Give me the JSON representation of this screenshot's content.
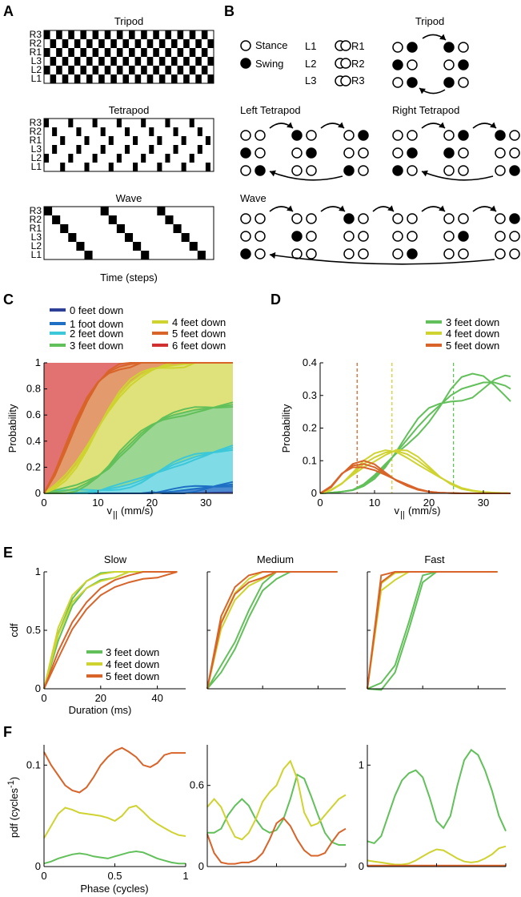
{
  "colors": {
    "f0": "#2e3f98",
    "f1": "#1f6fc4",
    "f2": "#3cc8d8",
    "f3": "#62c05a",
    "f4": "#cfd330",
    "f5": "#d8642a",
    "f6": "#d03030"
  },
  "panelA": {
    "label": "A",
    "tripod": {
      "title": "Tripod"
    },
    "tetrapod": {
      "title": "Tetrapod"
    },
    "wave": {
      "title": "Wave"
    },
    "rows": [
      "R3",
      "R2",
      "R1",
      "L3",
      "L2",
      "L1"
    ],
    "xlabel": "Time (steps)"
  },
  "panelB": {
    "label": "B",
    "legend": {
      "stance": "Stance",
      "swing": "Swing"
    },
    "legs": {
      "l1": "L1",
      "r1": "R1",
      "l2": "L2",
      "r2": "R2",
      "l3": "L3",
      "r3": "R3"
    },
    "tripod": "Tripod",
    "left_tetrapod": "Left Tetrapod",
    "right_tetrapod": "Right Tetrapod",
    "wave": "Wave"
  },
  "panelC": {
    "label": "C",
    "legend": [
      "0 feet down",
      "1 foot down",
      "2 feet down",
      "3 feet down",
      "4 feet down",
      "5 feet down",
      "6 feet down"
    ],
    "ylabel": "Probability",
    "xlabel_main": "v",
    "xlabel_sub": "||",
    "xlabel_unit": " (mm/s)",
    "xticks": [
      "0",
      "10",
      "20",
      "30"
    ],
    "yticks": [
      "0",
      "0.2",
      "0.4",
      "0.6",
      "0.8",
      "1"
    ]
  },
  "panelD": {
    "label": "D",
    "legend": [
      "3 feet down",
      "4 feet down",
      "5 feet down"
    ],
    "ylabel": "Probability",
    "xticks": [
      "0",
      "10",
      "20",
      "30"
    ],
    "yticks": [
      "0",
      "0.1",
      "0.2",
      "0.3",
      "0.4"
    ]
  },
  "panelE": {
    "label": "E",
    "titles": [
      "Slow",
      "Medium",
      "Fast"
    ],
    "ylabel": "cdf",
    "xlabel": "Duration (ms)",
    "xticks": [
      "0",
      "20",
      "40"
    ],
    "yticks": [
      "0",
      "0.5",
      "1"
    ],
    "legend": [
      "3 feet down",
      "4 feet down",
      "5 feet down"
    ]
  },
  "panelF": {
    "label": "F",
    "ylabel_main": "pdf (cycles",
    "ylabel_sup": "-1",
    "ylabel_end": ")",
    "xlabel": "Phase (cycles)",
    "xticks": [
      "0",
      "0.5",
      "1"
    ],
    "yticks": [
      [
        "0",
        "0.1"
      ],
      [
        "0",
        "0.6"
      ],
      [
        "0",
        "1"
      ]
    ]
  },
  "chart_data": [
    {
      "type": "area",
      "title": "",
      "xlabel": "v|| (mm/s)",
      "ylabel": "Probability",
      "xlim": [
        0,
        35
      ],
      "ylim": [
        0,
        1
      ],
      "x": [
        0,
        2,
        4,
        6,
        8,
        10,
        12,
        14,
        16,
        18,
        20,
        22,
        24,
        26,
        28,
        30,
        32,
        35
      ],
      "series": [
        {
          "name": "0 feet down",
          "cumulative_upper": [
            0,
            0,
            0,
            0,
            0,
            0,
            0,
            0,
            0,
            0,
            0,
            0,
            0.002,
            0.005,
            0.008,
            0.01,
            0.012,
            0.015
          ]
        },
        {
          "name": "1 foot down",
          "cumulative_upper": [
            0,
            0,
            0,
            0,
            0,
            0,
            0,
            0,
            0,
            0,
            0.003,
            0.008,
            0.015,
            0.025,
            0.035,
            0.045,
            0.055,
            0.07
          ]
        },
        {
          "name": "2 feet down",
          "cumulative_upper": [
            0,
            0.001,
            0.002,
            0.005,
            0.01,
            0.02,
            0.035,
            0.05,
            0.07,
            0.1,
            0.14,
            0.18,
            0.22,
            0.25,
            0.28,
            0.3,
            0.32,
            0.35
          ]
        },
        {
          "name": "3 feet down",
          "cumulative_upper": [
            0,
            0.01,
            0.02,
            0.04,
            0.08,
            0.13,
            0.2,
            0.3,
            0.38,
            0.46,
            0.52,
            0.57,
            0.6,
            0.62,
            0.64,
            0.65,
            0.66,
            0.68
          ]
        },
        {
          "name": "4 feet down",
          "cumulative_upper": [
            0,
            0.05,
            0.12,
            0.22,
            0.35,
            0.5,
            0.64,
            0.76,
            0.85,
            0.91,
            0.95,
            0.97,
            0.98,
            0.99,
            1,
            1,
            1,
            1
          ]
        },
        {
          "name": "5 feet down",
          "cumulative_upper": [
            0,
            0.15,
            0.35,
            0.55,
            0.72,
            0.85,
            0.93,
            0.97,
            0.99,
            1,
            1,
            1,
            1,
            1,
            1,
            1,
            1,
            1
          ]
        },
        {
          "name": "6 feet down",
          "cumulative_upper": [
            1,
            1,
            1,
            1,
            1,
            1,
            1,
            1,
            1,
            1,
            1,
            1,
            1,
            1,
            1,
            1,
            1,
            1
          ]
        }
      ]
    },
    {
      "type": "line",
      "xlabel": "v|| (mm/s)",
      "ylabel": "Probability",
      "xlim": [
        0,
        35
      ],
      "ylim": [
        0,
        0.4
      ],
      "x": [
        0,
        2,
        4,
        6,
        8,
        10,
        12,
        14,
        16,
        18,
        20,
        22,
        24,
        26,
        28,
        30,
        32,
        34,
        35
      ],
      "series": [
        {
          "name": "3 feet down",
          "values": [
            0,
            0.002,
            0.005,
            0.01,
            0.025,
            0.05,
            0.085,
            0.125,
            0.165,
            0.205,
            0.24,
            0.27,
            0.3,
            0.32,
            0.33,
            0.34,
            0.34,
            0.33,
            0.32
          ]
        },
        {
          "name": "4 feet down",
          "values": [
            0,
            0.01,
            0.03,
            0.06,
            0.09,
            0.11,
            0.125,
            0.13,
            0.12,
            0.1,
            0.075,
            0.05,
            0.03,
            0.015,
            0.008,
            0.004,
            0.002,
            0.001,
            0
          ]
        },
        {
          "name": "5 feet down",
          "values": [
            0,
            0.02,
            0.06,
            0.085,
            0.09,
            0.08,
            0.06,
            0.04,
            0.025,
            0.012,
            0.005,
            0.002,
            0.001,
            0,
            0,
            0,
            0,
            0,
            0
          ]
        }
      ],
      "mean_lines": {
        "3 feet down": 24.5,
        "4 feet down": 13.2,
        "5 feet down": 6.8
      }
    },
    [
      {
        "type": "line",
        "title": "Slow",
        "xlabel": "Duration (ms)",
        "ylabel": "cdf",
        "xlim": [
          0,
          50
        ],
        "ylim": [
          0,
          1
        ],
        "x": [
          0,
          5,
          10,
          15,
          20,
          25,
          30,
          35,
          40,
          47
        ],
        "series": [
          {
            "name": "3 feet down",
            "values": [
              0,
              0.45,
              0.75,
              0.9,
              0.97,
              0.99,
              1,
              1,
              1,
              1
            ]
          },
          {
            "name": "4 feet down",
            "values": [
              0,
              0.5,
              0.78,
              0.9,
              0.96,
              0.99,
              1,
              1,
              1,
              1
            ]
          },
          {
            "name": "5 feet down",
            "values": [
              0,
              0.3,
              0.55,
              0.72,
              0.84,
              0.91,
              0.95,
              0.98,
              0.99,
              1
            ]
          }
        ]
      },
      {
        "type": "line",
        "title": "Medium",
        "xlim": [
          0,
          50
        ],
        "ylim": [
          0,
          1
        ],
        "x": [
          0,
          5,
          10,
          15,
          20,
          25,
          30,
          35,
          40,
          47
        ],
        "series": [
          {
            "name": "3 feet down",
            "values": [
              0,
              0.18,
              0.38,
              0.65,
              0.88,
              0.98,
              1,
              1,
              1,
              1
            ]
          },
          {
            "name": "4 feet down",
            "values": [
              0,
              0.55,
              0.8,
              0.92,
              0.98,
              1,
              1,
              1,
              1,
              1
            ]
          },
          {
            "name": "5 feet down",
            "values": [
              0,
              0.6,
              0.85,
              0.95,
              0.99,
              1,
              1,
              1,
              1,
              1
            ]
          }
        ]
      },
      {
        "type": "line",
        "title": "Fast",
        "xlim": [
          0,
          50
        ],
        "ylim": [
          0,
          1
        ],
        "x": [
          0,
          5,
          10,
          15,
          20,
          25,
          30,
          35,
          40,
          47
        ],
        "series": [
          {
            "name": "3 feet down",
            "values": [
              0,
              0.03,
              0.18,
              0.55,
              0.95,
              1,
              1,
              1,
              1,
              1
            ]
          },
          {
            "name": "4 feet down",
            "values": [
              0,
              0.88,
              0.97,
              1,
              1,
              1,
              1,
              1,
              1,
              1
            ]
          },
          {
            "name": "5 feet down",
            "values": [
              0,
              0.95,
              1,
              1,
              1,
              1,
              1,
              1,
              1,
              1
            ]
          }
        ]
      }
    ],
    [
      {
        "type": "line",
        "xlabel": "Phase (cycles)",
        "ylabel": "pdf (cycles^-1)",
        "xlim": [
          0,
          1
        ],
        "ylim": [
          0,
          0.12
        ],
        "x": [
          0,
          0.05,
          0.1,
          0.15,
          0.2,
          0.25,
          0.3,
          0.35,
          0.4,
          0.45,
          0.5,
          0.55,
          0.6,
          0.65,
          0.7,
          0.75,
          0.8,
          0.85,
          0.9,
          0.95,
          1
        ],
        "series": [
          {
            "name": "3 feet down",
            "values": [
              0.003,
              0.005,
              0.008,
              0.01,
              0.012,
              0.013,
              0.012,
              0.01,
              0.009,
              0.008,
              0.01,
              0.012,
              0.014,
              0.015,
              0.014,
              0.011,
              0.008,
              0.006,
              0.004,
              0.003,
              0.003
            ]
          },
          {
            "name": "4 feet down",
            "values": [
              0.028,
              0.04,
              0.052,
              0.058,
              0.056,
              0.053,
              0.052,
              0.051,
              0.05,
              0.048,
              0.045,
              0.05,
              0.058,
              0.06,
              0.054,
              0.047,
              0.042,
              0.038,
              0.034,
              0.031,
              0.03
            ]
          },
          {
            "name": "5 feet down",
            "values": [
              0.113,
              0.1,
              0.09,
              0.08,
              0.075,
              0.073,
              0.078,
              0.088,
              0.1,
              0.108,
              0.114,
              0.117,
              0.113,
              0.108,
              0.1,
              0.098,
              0.102,
              0.11,
              0.112,
              0.112,
              0.112
            ]
          }
        ]
      },
      {
        "type": "line",
        "xlim": [
          0,
          1
        ],
        "ylim": [
          0,
          0.9
        ],
        "x": [
          0,
          0.05,
          0.1,
          0.15,
          0.2,
          0.25,
          0.3,
          0.35,
          0.4,
          0.45,
          0.5,
          0.55,
          0.6,
          0.65,
          0.7,
          0.75,
          0.8,
          0.85,
          0.9,
          0.95,
          1
        ],
        "series": [
          {
            "name": "3 feet down",
            "values": [
              0.25,
              0.25,
              0.28,
              0.38,
              0.45,
              0.5,
              0.45,
              0.35,
              0.28,
              0.25,
              0.27,
              0.35,
              0.5,
              0.68,
              0.65,
              0.52,
              0.38,
              0.25,
              0.18,
              0.16,
              0.16
            ]
          },
          {
            "name": "4 feet down",
            "values": [
              0.44,
              0.5,
              0.44,
              0.32,
              0.22,
              0.2,
              0.25,
              0.35,
              0.48,
              0.55,
              0.6,
              0.72,
              0.78,
              0.65,
              0.4,
              0.3,
              0.32,
              0.38,
              0.44,
              0.5,
              0.53
            ]
          },
          {
            "name": "5 feet down",
            "values": [
              0.24,
              0.1,
              0.03,
              0.02,
              0.02,
              0.03,
              0.03,
              0.05,
              0.1,
              0.2,
              0.32,
              0.36,
              0.3,
              0.2,
              0.12,
              0.08,
              0.08,
              0.1,
              0.18,
              0.25,
              0.28
            ]
          }
        ]
      },
      {
        "type": "line",
        "xlim": [
          0,
          1
        ],
        "ylim": [
          0,
          1.2
        ],
        "x": [
          0,
          0.05,
          0.1,
          0.15,
          0.2,
          0.25,
          0.3,
          0.35,
          0.4,
          0.45,
          0.5,
          0.55,
          0.6,
          0.65,
          0.7,
          0.75,
          0.8,
          0.85,
          0.9,
          0.95,
          1
        ],
        "series": [
          {
            "name": "3 feet down",
            "values": [
              0.25,
              0.23,
              0.3,
              0.5,
              0.7,
              0.85,
              0.92,
              0.95,
              0.88,
              0.68,
              0.45,
              0.38,
              0.5,
              0.8,
              1.05,
              1.15,
              1.1,
              0.95,
              0.75,
              0.5,
              0.35
            ]
          },
          {
            "name": "4 feet down",
            "values": [
              0.06,
              0.05,
              0.04,
              0.03,
              0.02,
              0.02,
              0.03,
              0.06,
              0.1,
              0.14,
              0.17,
              0.16,
              0.12,
              0.08,
              0.05,
              0.04,
              0.05,
              0.08,
              0.12,
              0.18,
              0.2
            ]
          },
          {
            "name": "5 feet down",
            "values": [
              0.01,
              0.01,
              0.01,
              0.01,
              0.01,
              0.01,
              0.01,
              0.01,
              0.01,
              0.01,
              0.01,
              0.01,
              0.01,
              0.01,
              0.01,
              0.01,
              0.01,
              0.01,
              0.01,
              0.01,
              0.01
            ]
          }
        ]
      }
    ]
  ]
}
